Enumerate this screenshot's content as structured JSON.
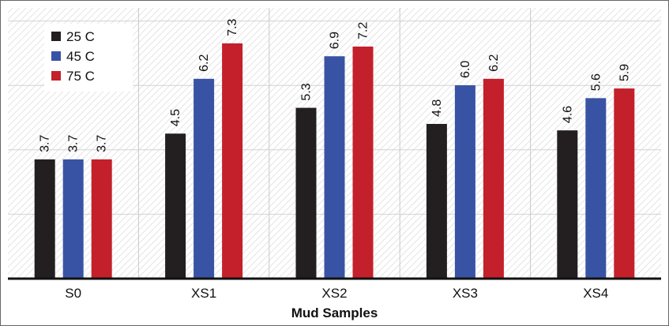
{
  "chart_data": {
    "type": "bar",
    "title": "",
    "xlabel": "Mud Samples",
    "ylabel": "",
    "categories": [
      "S0",
      "XS1",
      "XS2",
      "XS3",
      "XS4"
    ],
    "series": [
      {
        "name": "25 C",
        "color": "#231f20",
        "values": [
          3.7,
          4.5,
          5.3,
          4.8,
          4.6
        ]
      },
      {
        "name": "45 C",
        "color": "#3953a4",
        "values": [
          3.7,
          6.2,
          6.9,
          6.0,
          5.6
        ]
      },
      {
        "name": "75 C",
        "color": "#c3202b",
        "values": [
          3.7,
          7.3,
          7.2,
          6.2,
          5.9
        ]
      }
    ],
    "value_labels": [
      [
        "3.7",
        "4.5",
        "5.3",
        "4.8",
        "4.6"
      ],
      [
        "3.7",
        "6.2",
        "6.9",
        "6.0",
        "5.6"
      ],
      [
        "3.7",
        "7.3",
        "7.2",
        "6.2",
        "5.9"
      ]
    ],
    "ylim": [
      0,
      8.4
    ],
    "grid": true,
    "legend_position": "top-left"
  }
}
